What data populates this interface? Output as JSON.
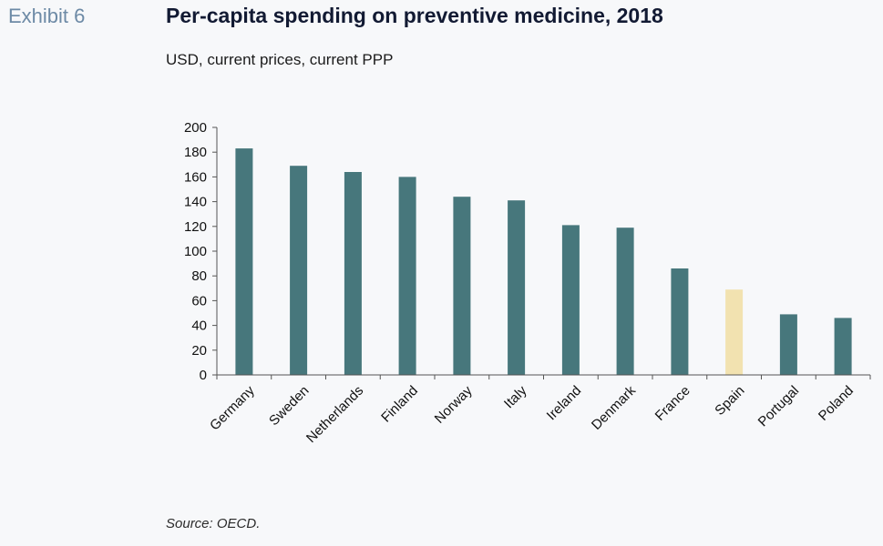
{
  "header": {
    "exhibit": "Exhibit 6",
    "title": "Per-capita spending on preventive medicine, 2018",
    "subtitle": "USD, current prices, current PPP"
  },
  "footer": {
    "source": "Source: OECD."
  },
  "colors": {
    "bar": "#47777c",
    "highlight": "#f2e2b0",
    "axis": "#555555"
  },
  "chart_data": {
    "type": "bar",
    "title": "Per-capita spending on preventive medicine, 2018",
    "categories": [
      "Germany",
      "Sweden",
      "Netherlands",
      "Finland",
      "Norway",
      "Italy",
      "Ireland",
      "Denmark",
      "France",
      "Spain",
      "Portugal",
      "Poland"
    ],
    "values": [
      183,
      169,
      164,
      160,
      144,
      141,
      121,
      119,
      86,
      69,
      49,
      46
    ],
    "highlight_category": "Spain",
    "ylim": [
      0,
      200
    ],
    "yticks": [
      0,
      20,
      40,
      60,
      80,
      100,
      120,
      140,
      160,
      180,
      200
    ],
    "xlabel": "",
    "ylabel": "",
    "grid": false,
    "legend": "none"
  }
}
